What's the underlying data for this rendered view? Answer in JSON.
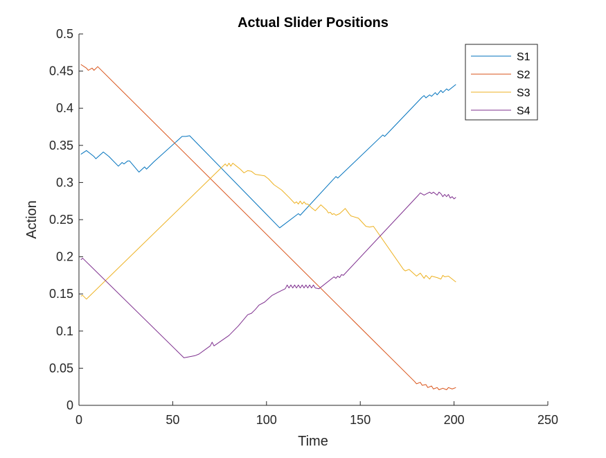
{
  "chart_data": {
    "type": "line",
    "title": "Actual Slider Positions",
    "xlabel": "Time",
    "ylabel": "Action",
    "xlim": [
      0,
      250
    ],
    "ylim": [
      0,
      0.5
    ],
    "xticks": [
      0,
      50,
      100,
      150,
      200,
      250
    ],
    "yticks": [
      0,
      0.05,
      0.1,
      0.15,
      0.2,
      0.25,
      0.3,
      0.35,
      0.4,
      0.45,
      0.5
    ],
    "xtick_labels": [
      "0",
      "50",
      "100",
      "150",
      "200",
      "250"
    ],
    "ytick_labels": [
      "0",
      "0.05",
      "0.1",
      "0.15",
      "0.2",
      "0.25",
      "0.3",
      "0.35",
      "0.4",
      "0.45",
      "0.5"
    ],
    "grid": false,
    "legend_position": "top-right",
    "series": [
      {
        "name": "S1",
        "color": "#0072BD",
        "points": [
          [
            1,
            0.338
          ],
          [
            4,
            0.343
          ],
          [
            8,
            0.335
          ],
          [
            9,
            0.332
          ],
          [
            13,
            0.341
          ],
          [
            16,
            0.335
          ],
          [
            21,
            0.322
          ],
          [
            23,
            0.327
          ],
          [
            24,
            0.325
          ],
          [
            26,
            0.329
          ],
          [
            27,
            0.329
          ],
          [
            29,
            0.323
          ],
          [
            32,
            0.314
          ],
          [
            35,
            0.321
          ],
          [
            36,
            0.318
          ],
          [
            40,
            0.328
          ],
          [
            55,
            0.362
          ],
          [
            57,
            0.362
          ],
          [
            59,
            0.363
          ],
          [
            107,
            0.239
          ],
          [
            117,
            0.258
          ],
          [
            118,
            0.256
          ],
          [
            137,
            0.308
          ],
          [
            138,
            0.306
          ],
          [
            162,
            0.364
          ],
          [
            163,
            0.362
          ],
          [
            183,
            0.415
          ],
          [
            184,
            0.417
          ],
          [
            185,
            0.414
          ],
          [
            187,
            0.418
          ],
          [
            188,
            0.416
          ],
          [
            190,
            0.421
          ],
          [
            191,
            0.418
          ],
          [
            193,
            0.424
          ],
          [
            194,
            0.421
          ],
          [
            196,
            0.426
          ],
          [
            197,
            0.424
          ],
          [
            201,
            0.432
          ]
        ]
      },
      {
        "name": "S2",
        "color": "#D95319",
        "points": [
          [
            1,
            0.459
          ],
          [
            4,
            0.454
          ],
          [
            5,
            0.451
          ],
          [
            7,
            0.454
          ],
          [
            8,
            0.451
          ],
          [
            10,
            0.456
          ],
          [
            179,
            0.032
          ],
          [
            180,
            0.029
          ],
          [
            182,
            0.031
          ],
          [
            183,
            0.027
          ],
          [
            185,
            0.028
          ],
          [
            186,
            0.024
          ],
          [
            188,
            0.026
          ],
          [
            189,
            0.022
          ],
          [
            191,
            0.024
          ],
          [
            192,
            0.021
          ],
          [
            194,
            0.023
          ],
          [
            196,
            0.021
          ],
          [
            197,
            0.024
          ],
          [
            199,
            0.022
          ],
          [
            201,
            0.024
          ]
        ]
      },
      {
        "name": "S3",
        "color": "#EDB120",
        "points": [
          [
            1,
            0.147
          ],
          [
            2,
            0.148
          ],
          [
            4,
            0.143
          ],
          [
            78,
            0.325
          ],
          [
            79,
            0.322
          ],
          [
            80,
            0.326
          ],
          [
            81,
            0.322
          ],
          [
            82,
            0.326
          ],
          [
            84,
            0.322
          ],
          [
            86,
            0.318
          ],
          [
            88,
            0.313
          ],
          [
            90,
            0.316
          ],
          [
            92,
            0.315
          ],
          [
            94,
            0.311
          ],
          [
            99,
            0.309
          ],
          [
            101,
            0.305
          ],
          [
            104,
            0.297
          ],
          [
            108,
            0.29
          ],
          [
            112,
            0.28
          ],
          [
            115,
            0.272
          ],
          [
            116,
            0.274
          ],
          [
            117,
            0.271
          ],
          [
            118,
            0.275
          ],
          [
            119,
            0.271
          ],
          [
            120,
            0.274
          ],
          [
            121,
            0.271
          ],
          [
            122,
            0.271
          ],
          [
            124,
            0.266
          ],
          [
            126,
            0.262
          ],
          [
            129,
            0.27
          ],
          [
            132,
            0.263
          ],
          [
            133,
            0.259
          ],
          [
            134,
            0.26
          ],
          [
            135,
            0.257
          ],
          [
            136,
            0.258
          ],
          [
            137,
            0.256
          ],
          [
            139,
            0.258
          ],
          [
            142,
            0.265
          ],
          [
            144,
            0.258
          ],
          [
            145,
            0.255
          ],
          [
            149,
            0.252
          ],
          [
            153,
            0.241
          ],
          [
            155,
            0.24
          ],
          [
            157,
            0.241
          ],
          [
            173,
            0.183
          ],
          [
            174,
            0.181
          ],
          [
            176,
            0.183
          ],
          [
            180,
            0.174
          ],
          [
            182,
            0.178
          ],
          [
            184,
            0.171
          ],
          [
            185,
            0.175
          ],
          [
            187,
            0.17
          ],
          [
            188,
            0.174
          ],
          [
            191,
            0.172
          ],
          [
            193,
            0.17
          ],
          [
            194,
            0.175
          ],
          [
            195,
            0.173
          ],
          [
            197,
            0.174
          ],
          [
            201,
            0.166
          ]
        ]
      },
      {
        "name": "S4",
        "color": "#7E2F8E",
        "points": [
          [
            1,
            0.196
          ],
          [
            2,
            0.198
          ],
          [
            56,
            0.064
          ],
          [
            62,
            0.067
          ],
          [
            64,
            0.069
          ],
          [
            70,
            0.08
          ],
          [
            71,
            0.085
          ],
          [
            72,
            0.08
          ],
          [
            80,
            0.094
          ],
          [
            85,
            0.107
          ],
          [
            90,
            0.122
          ],
          [
            92,
            0.124
          ],
          [
            94,
            0.129
          ],
          [
            96,
            0.135
          ],
          [
            99,
            0.139
          ],
          [
            103,
            0.148
          ],
          [
            106,
            0.152
          ],
          [
            110,
            0.157
          ],
          [
            111,
            0.162
          ],
          [
            112,
            0.158
          ],
          [
            113,
            0.162
          ],
          [
            114,
            0.158
          ],
          [
            115,
            0.162
          ],
          [
            116,
            0.158
          ],
          [
            117,
            0.162
          ],
          [
            118,
            0.158
          ],
          [
            119,
            0.162
          ],
          [
            120,
            0.158
          ],
          [
            121,
            0.162
          ],
          [
            122,
            0.158
          ],
          [
            123,
            0.162
          ],
          [
            124,
            0.158
          ],
          [
            125,
            0.162
          ],
          [
            126,
            0.158
          ],
          [
            128,
            0.157
          ],
          [
            136,
            0.173
          ],
          [
            137,
            0.171
          ],
          [
            138,
            0.174
          ],
          [
            139,
            0.172
          ],
          [
            140,
            0.176
          ],
          [
            141,
            0.175
          ],
          [
            181,
            0.283
          ],
          [
            182,
            0.286
          ],
          [
            184,
            0.283
          ],
          [
            187,
            0.287
          ],
          [
            188,
            0.285
          ],
          [
            189,
            0.287
          ],
          [
            191,
            0.283
          ],
          [
            192,
            0.287
          ],
          [
            193,
            0.285
          ],
          [
            194,
            0.281
          ],
          [
            195,
            0.284
          ],
          [
            196,
            0.281
          ],
          [
            197,
            0.284
          ],
          [
            198,
            0.279
          ],
          [
            199,
            0.281
          ],
          [
            200,
            0.278
          ],
          [
            201,
            0.28
          ]
        ]
      }
    ]
  }
}
